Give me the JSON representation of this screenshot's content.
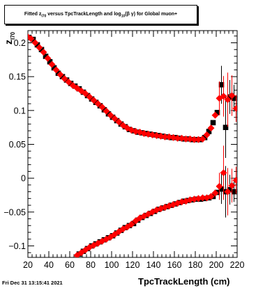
{
  "datestamp": "Fri Dec 31 13:15:41 2021",
  "colors": {
    "series_black": "#000000",
    "series_red": "#ff0000",
    "frame": "#000000"
  },
  "chart_data": {
    "type": "scatter",
    "title": "Fitted  z_{I70} versus TpcTrackLength and log_{10}(β γ) for Global muon+",
    "title_text": "Fitted  z",
    "title_sub": "I70",
    "title_rest": " versus TpcTrackLength and log",
    "title_sub2": "10",
    "title_end": "(β γ) for Global muon+",
    "xlabel": "TpcTrackLength (cm)",
    "ylabel": "z",
    "ylabel_sub": "I70",
    "xlim": [
      20,
      220
    ],
    "ylim": [
      -0.117,
      0.218
    ],
    "grid": false,
    "xticks": [
      20,
      40,
      60,
      80,
      100,
      120,
      140,
      160,
      180,
      200,
      220
    ],
    "yticks": [
      -0.1,
      -0.05,
      0,
      0.05,
      0.1,
      0.15,
      0.2
    ],
    "ytick_labels": [
      "−0.1",
      "−0.05",
      "0",
      "0.05",
      "0.1",
      "0.15",
      "0.2"
    ],
    "series": [
      {
        "color": "black",
        "marker": "square",
        "points": [
          [
            21,
            0.208
          ],
          [
            25,
            0.205
          ],
          [
            29,
            0.197
          ],
          [
            33,
            0.19
          ],
          [
            37,
            0.18
          ],
          [
            41,
            0.172
          ],
          [
            45,
            0.163
          ],
          [
            49,
            0.155
          ],
          [
            53,
            0.15
          ],
          [
            57,
            0.145
          ],
          [
            61,
            0.14
          ],
          [
            65,
            0.136
          ],
          [
            69,
            0.132
          ],
          [
            73,
            0.127
          ],
          [
            77,
            0.122
          ],
          [
            81,
            0.117
          ],
          [
            85,
            0.112
          ],
          [
            89,
            0.107
          ],
          [
            93,
            0.101
          ],
          [
            97,
            0.095
          ],
          [
            101,
            0.09
          ],
          [
            105,
            0.085
          ],
          [
            109,
            0.08
          ],
          [
            113,
            0.076
          ],
          [
            117,
            0.072
          ],
          [
            121,
            0.07
          ],
          [
            125,
            0.068
          ],
          [
            129,
            0.067
          ],
          [
            133,
            0.066
          ],
          [
            137,
            0.065
          ],
          [
            141,
            0.064
          ],
          [
            145,
            0.063
          ],
          [
            149,
            0.062
          ],
          [
            153,
            0.061
          ],
          [
            157,
            0.06
          ],
          [
            161,
            0.06
          ],
          [
            165,
            0.059
          ],
          [
            169,
            0.058
          ],
          [
            173,
            0.058
          ],
          [
            177,
            0.057
          ],
          [
            181,
            0.057
          ],
          [
            185,
            0.057
          ],
          [
            189,
            0.06
          ],
          [
            193,
            0.069
          ],
          [
            197,
            0.082
          ],
          [
            201,
            0.097
          ],
          [
            205,
            0.138
          ],
          [
            209,
            0.075
          ],
          [
            213,
            0.12
          ],
          [
            217,
            0.118
          ]
        ],
        "errors": [
          [
            205,
            0.028
          ],
          [
            209,
            0.045
          ],
          [
            213,
            0.025
          ],
          [
            217,
            0.02
          ]
        ]
      },
      {
        "color": "black",
        "marker": "square",
        "points": [
          [
            69,
            -0.112
          ],
          [
            73,
            -0.108
          ],
          [
            77,
            -0.104
          ],
          [
            81,
            -0.1
          ],
          [
            85,
            -0.097
          ],
          [
            89,
            -0.094
          ],
          [
            93,
            -0.091
          ],
          [
            97,
            -0.088
          ],
          [
            101,
            -0.085
          ],
          [
            105,
            -0.081
          ],
          [
            109,
            -0.077
          ],
          [
            113,
            -0.073
          ],
          [
            117,
            -0.07
          ],
          [
            121,
            -0.067
          ],
          [
            125,
            -0.062
          ],
          [
            129,
            -0.058
          ],
          [
            133,
            -0.055
          ],
          [
            137,
            -0.052
          ],
          [
            141,
            -0.049
          ],
          [
            145,
            -0.046
          ],
          [
            149,
            -0.044
          ],
          [
            153,
            -0.042
          ],
          [
            157,
            -0.04
          ],
          [
            161,
            -0.038
          ],
          [
            165,
            -0.036
          ],
          [
            169,
            -0.034
          ],
          [
            173,
            -0.033
          ],
          [
            177,
            -0.032
          ],
          [
            181,
            -0.031
          ],
          [
            185,
            -0.031
          ],
          [
            189,
            -0.03
          ],
          [
            193,
            -0.029
          ],
          [
            197,
            -0.027
          ],
          [
            201,
            -0.021
          ],
          [
            205,
            -0.016
          ],
          [
            209,
            -0.02
          ],
          [
            213,
            -0.017
          ],
          [
            217,
            -0.02
          ]
        ],
        "errors": [
          [
            205,
            0.022
          ],
          [
            209,
            0.038
          ],
          [
            213,
            0.022
          ],
          [
            217,
            0.015
          ]
        ]
      },
      {
        "color": "red",
        "marker": "diamond",
        "points": [
          [
            19,
            0.21
          ],
          [
            23,
            0.206
          ],
          [
            27,
            0.2
          ],
          [
            31,
            0.193
          ],
          [
            35,
            0.186
          ],
          [
            39,
            0.177
          ],
          [
            43,
            0.168
          ],
          [
            47,
            0.16
          ],
          [
            51,
            0.153
          ],
          [
            55,
            0.147
          ],
          [
            59,
            0.142
          ],
          [
            63,
            0.137
          ],
          [
            67,
            0.133
          ],
          [
            71,
            0.129
          ],
          [
            75,
            0.125
          ],
          [
            79,
            0.12
          ],
          [
            83,
            0.115
          ],
          [
            87,
            0.11
          ],
          [
            91,
            0.105
          ],
          [
            95,
            0.099
          ],
          [
            99,
            0.093
          ],
          [
            103,
            0.088
          ],
          [
            107,
            0.083
          ],
          [
            111,
            0.078
          ],
          [
            115,
            0.074
          ],
          [
            119,
            0.071
          ],
          [
            123,
            0.069
          ],
          [
            127,
            0.068
          ],
          [
            131,
            0.066
          ],
          [
            135,
            0.065
          ],
          [
            139,
            0.064
          ],
          [
            143,
            0.063
          ],
          [
            147,
            0.062
          ],
          [
            151,
            0.061
          ],
          [
            155,
            0.061
          ],
          [
            159,
            0.06
          ],
          [
            163,
            0.059
          ],
          [
            167,
            0.059
          ],
          [
            171,
            0.058
          ],
          [
            175,
            0.058
          ],
          [
            179,
            0.057
          ],
          [
            183,
            0.057
          ],
          [
            187,
            0.058
          ],
          [
            191,
            0.064
          ],
          [
            195,
            0.074
          ],
          [
            199,
            0.093
          ],
          [
            203,
            0.118
          ],
          [
            207,
            0.121
          ],
          [
            211,
            0.116
          ],
          [
            215,
            0.122
          ],
          [
            219,
            0.103
          ]
        ],
        "errors": [
          [
            203,
            0.025
          ],
          [
            207,
            0.03
          ],
          [
            211,
            0.04
          ],
          [
            215,
            0.03
          ],
          [
            219,
            0.02
          ]
        ]
      },
      {
        "color": "red",
        "marker": "diamond",
        "points": [
          [
            67,
            -0.114
          ],
          [
            71,
            -0.11
          ],
          [
            75,
            -0.106
          ],
          [
            79,
            -0.102
          ],
          [
            83,
            -0.099
          ],
          [
            87,
            -0.096
          ],
          [
            91,
            -0.093
          ],
          [
            95,
            -0.09
          ],
          [
            99,
            -0.087
          ],
          [
            103,
            -0.083
          ],
          [
            107,
            -0.079
          ],
          [
            111,
            -0.075
          ],
          [
            115,
            -0.072
          ],
          [
            119,
            -0.068
          ],
          [
            123,
            -0.063
          ],
          [
            127,
            -0.059
          ],
          [
            131,
            -0.056
          ],
          [
            135,
            -0.053
          ],
          [
            139,
            -0.05
          ],
          [
            143,
            -0.047
          ],
          [
            147,
            -0.045
          ],
          [
            151,
            -0.043
          ],
          [
            155,
            -0.041
          ],
          [
            159,
            -0.039
          ],
          [
            163,
            -0.037
          ],
          [
            167,
            -0.035
          ],
          [
            171,
            -0.034
          ],
          [
            175,
            -0.032
          ],
          [
            179,
            -0.031
          ],
          [
            183,
            -0.03
          ],
          [
            187,
            -0.029
          ],
          [
            191,
            -0.029
          ],
          [
            195,
            -0.027
          ],
          [
            199,
            -0.022
          ],
          [
            203,
            -0.012
          ],
          [
            207,
            0.008
          ],
          [
            211,
            -0.02
          ],
          [
            215,
            -0.011
          ],
          [
            219,
            -0.003
          ]
        ],
        "errors": [
          [
            203,
            0.02
          ],
          [
            207,
            0.04
          ],
          [
            211,
            0.035
          ],
          [
            215,
            0.025
          ],
          [
            219,
            0.02
          ]
        ]
      }
    ]
  }
}
